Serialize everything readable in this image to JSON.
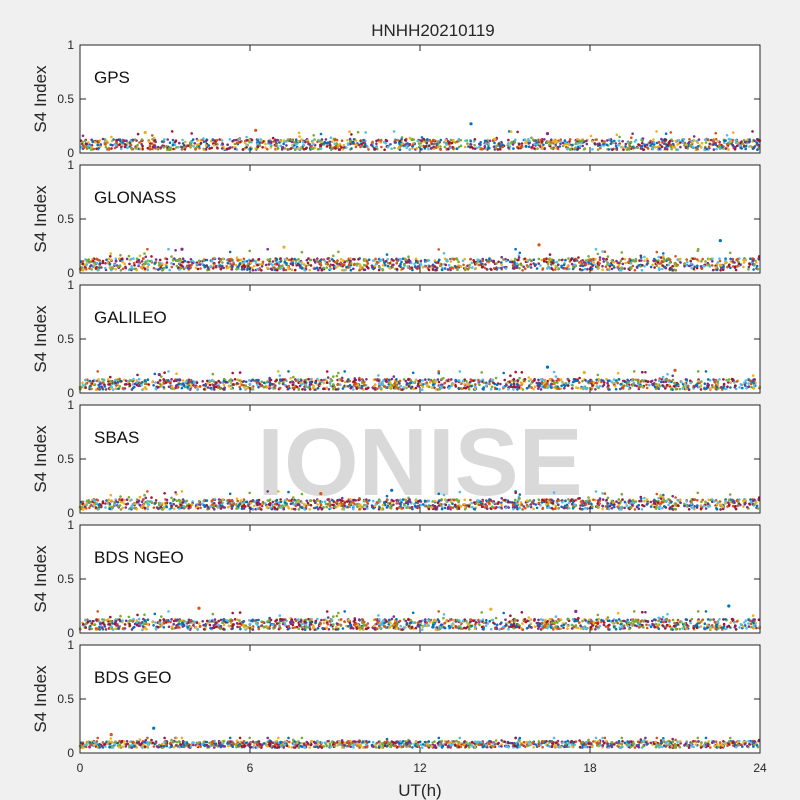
{
  "chart_data": {
    "type": "scatter",
    "title": "HNHH20210119",
    "xlabel": "UT(h)",
    "ylabel": "S4 Index",
    "xlim": [
      0,
      24
    ],
    "ylim": [
      0,
      1
    ],
    "x_ticks": [
      "0",
      "6",
      "12",
      "18",
      "24"
    ],
    "x_tick_values": [
      0,
      6,
      12,
      18,
      24
    ],
    "y_ticks": [
      "0",
      "0.5",
      "1"
    ],
    "y_tick_values": [
      0,
      0.5,
      1
    ],
    "watermark": "IONISE",
    "series_colors": [
      "#0072bd",
      "#d95319",
      "#edb120",
      "#7e2f8e",
      "#77ac30",
      "#4dbeee",
      "#a2142f"
    ],
    "panels": [
      {
        "label": "GPS",
        "baseline": 0.08,
        "typical_range": [
          0.02,
          0.2
        ],
        "notable_points": [
          {
            "x": 13.8,
            "y": 0.27
          },
          {
            "x": 6.2,
            "y": 0.21
          },
          {
            "x": 2.3,
            "y": 0.19
          },
          {
            "x": 16.5,
            "y": 0.18
          }
        ]
      },
      {
        "label": "GLONASS",
        "baseline": 0.08,
        "typical_range": [
          0.02,
          0.22
        ],
        "notable_points": [
          {
            "x": 22.6,
            "y": 0.3
          },
          {
            "x": 16.2,
            "y": 0.26
          },
          {
            "x": 7.2,
            "y": 0.24
          },
          {
            "x": 3.6,
            "y": 0.22
          }
        ]
      },
      {
        "label": "GALILEO",
        "baseline": 0.08,
        "typical_range": [
          0.02,
          0.2
        ],
        "notable_points": [
          {
            "x": 16.5,
            "y": 0.24
          },
          {
            "x": 21.0,
            "y": 0.21
          },
          {
            "x": 17.8,
            "y": 0.19
          },
          {
            "x": 2.8,
            "y": 0.17
          }
        ]
      },
      {
        "label": "SBAS",
        "baseline": 0.08,
        "typical_range": [
          0.03,
          0.2
        ],
        "notable_points": [
          {
            "x": 11.0,
            "y": 0.21
          },
          {
            "x": 8.5,
            "y": 0.18
          },
          {
            "x": 20.5,
            "y": 0.16
          }
        ]
      },
      {
        "label": "BDS NGEO",
        "baseline": 0.08,
        "typical_range": [
          0.02,
          0.2
        ],
        "notable_points": [
          {
            "x": 22.9,
            "y": 0.25
          },
          {
            "x": 4.2,
            "y": 0.23
          },
          {
            "x": 14.5,
            "y": 0.22
          },
          {
            "x": 17.5,
            "y": 0.2
          }
        ]
      },
      {
        "label": "BDS GEO",
        "baseline": 0.08,
        "typical_range": [
          0.03,
          0.14
        ],
        "notable_points": [
          {
            "x": 2.6,
            "y": 0.23
          },
          {
            "x": 1.1,
            "y": 0.17
          }
        ]
      }
    ]
  }
}
